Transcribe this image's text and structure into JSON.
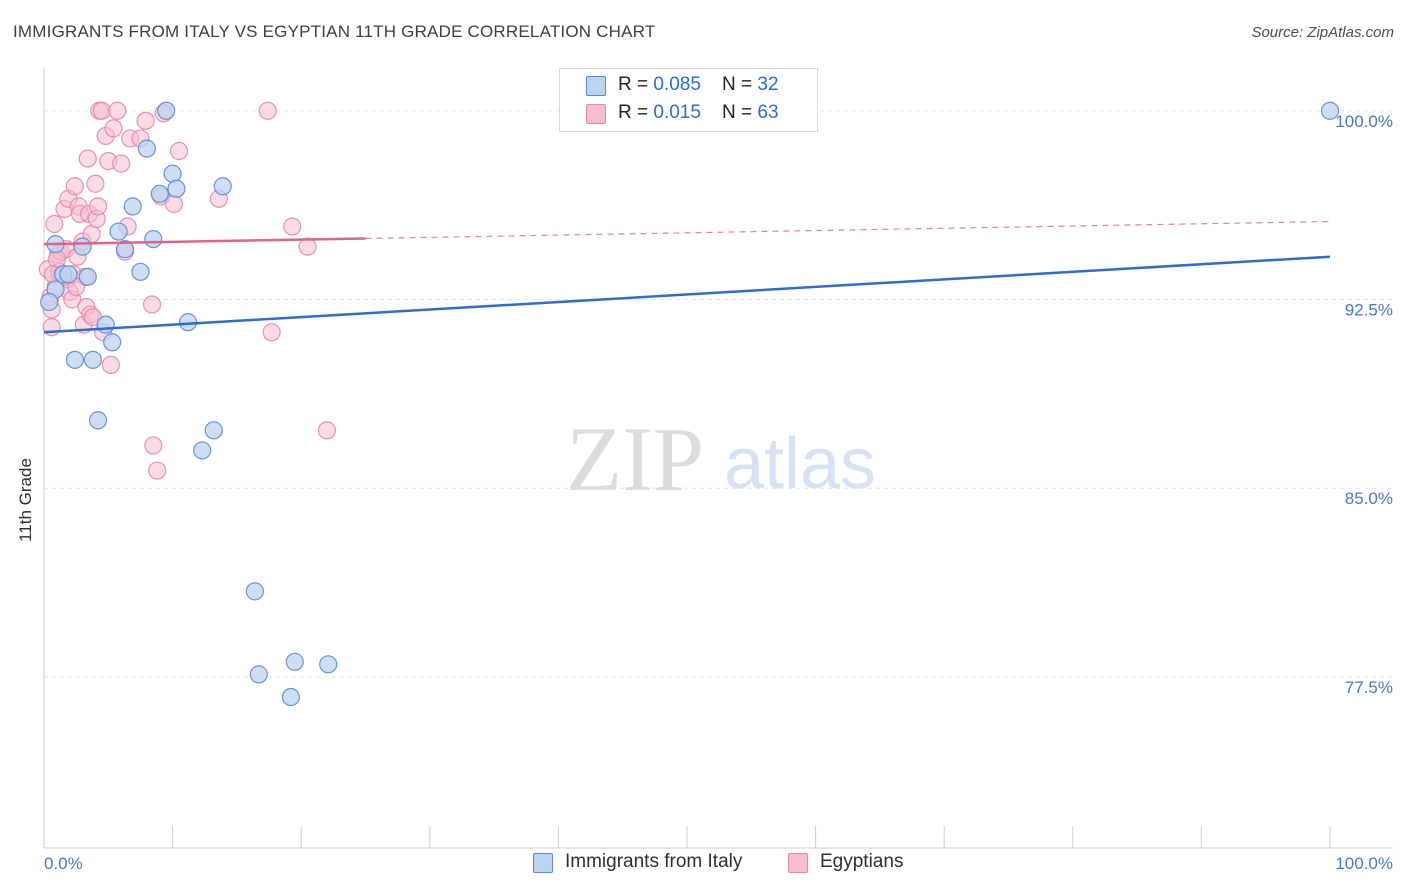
{
  "header": {
    "title": "IMMIGRANTS FROM ITALY VS EGYPTIAN 11TH GRADE CORRELATION CHART",
    "source": "Source: ZipAtlas.com"
  },
  "watermark": {
    "zip": "ZIP",
    "atlas": "atlas"
  },
  "colors": {
    "blue": "#2f6ccf",
    "blue_fill": "#bcd3f2",
    "pink": "#e0628e",
    "pink_fill": "#f7bdd0",
    "grid": "#e3e3e3",
    "tick_label": "#4a78c4"
  },
  "legend": {
    "italy": {
      "r_label": "R = ",
      "r_value": "0.085",
      "n_label": "N = ",
      "n_value": "32"
    },
    "egypt": {
      "r_label": "R = ",
      "r_value": "0.015",
      "n_label": "N = ",
      "n_value": "63"
    }
  },
  "series_labels": {
    "italy": "Immigrants from Italy",
    "egypt": "Egyptians"
  },
  "chart_data": {
    "type": "scatter",
    "title": "IMMIGRANTS FROM ITALY VS EGYPTIAN 11TH GRADE CORRELATION CHART",
    "xlabel": "",
    "ylabel": "11th Grade",
    "xlim": [
      0,
      100
    ],
    "ylim": [
      70.7,
      101.7
    ],
    "x_tick_labels": [
      "0.0%",
      "100.0%"
    ],
    "y_ticks": [
      {
        "value": 100.0,
        "label": "100.0%"
      },
      {
        "value": 92.5,
        "label": "92.5%"
      },
      {
        "value": 85.0,
        "label": "85.0%"
      },
      {
        "value": 77.5,
        "label": "77.5%"
      }
    ],
    "grid": true,
    "legend_position": "top-center",
    "series": [
      {
        "name": "Immigrants from Italy",
        "color": "#2f6ccf",
        "trend": {
          "x0": 0,
          "y0": 91.2,
          "x1": 100,
          "y1": 94.2,
          "dashed_from": null
        },
        "points": [
          [
            0.9,
            94.7
          ],
          [
            0.9,
            92.9
          ],
          [
            1.5,
            93.5
          ],
          [
            1.9,
            93.5
          ],
          [
            2.4,
            90.1
          ],
          [
            3.0,
            94.6
          ],
          [
            3.4,
            93.4
          ],
          [
            3.8,
            90.1
          ],
          [
            4.2,
            87.7
          ],
          [
            4.8,
            91.5
          ],
          [
            5.3,
            90.8
          ],
          [
            5.8,
            95.2
          ],
          [
            6.3,
            94.5
          ],
          [
            6.9,
            96.2
          ],
          [
            7.5,
            93.6
          ],
          [
            8.0,
            98.5
          ],
          [
            8.5,
            94.9
          ],
          [
            9.0,
            96.7
          ],
          [
            9.5,
            100.0
          ],
          [
            10.0,
            97.5
          ],
          [
            10.3,
            96.9
          ],
          [
            11.2,
            91.6
          ],
          [
            12.3,
            86.5
          ],
          [
            13.2,
            87.3
          ],
          [
            13.9,
            97.0
          ],
          [
            16.4,
            80.9
          ],
          [
            16.7,
            77.6
          ],
          [
            19.2,
            76.7
          ],
          [
            19.5,
            78.1
          ],
          [
            22.1,
            78.0
          ],
          [
            0.4,
            92.4
          ],
          [
            100.0,
            100.0
          ]
        ]
      },
      {
        "name": "Egyptians",
        "color": "#e0628e",
        "trend": {
          "x0": 0,
          "y0": 94.7,
          "x1": 100,
          "y1": 95.6,
          "dashed_from": 25
        },
        "points": [
          [
            0.3,
            93.7
          ],
          [
            0.5,
            92.6
          ],
          [
            0.6,
            92.1
          ],
          [
            0.6,
            91.4
          ],
          [
            0.8,
            95.5
          ],
          [
            0.9,
            93.0
          ],
          [
            1.1,
            94.3
          ],
          [
            1.2,
            93.6
          ],
          [
            1.3,
            94.4
          ],
          [
            1.4,
            93.5
          ],
          [
            1.6,
            96.1
          ],
          [
            1.7,
            94.5
          ],
          [
            1.8,
            93.3
          ],
          [
            1.9,
            96.5
          ],
          [
            2.0,
            92.8
          ],
          [
            2.2,
            92.5
          ],
          [
            2.3,
            93.5
          ],
          [
            2.4,
            97.0
          ],
          [
            2.6,
            94.2
          ],
          [
            2.7,
            96.2
          ],
          [
            2.8,
            95.9
          ],
          [
            3.0,
            94.8
          ],
          [
            3.1,
            91.5
          ],
          [
            3.2,
            93.4
          ],
          [
            3.3,
            92.2
          ],
          [
            3.4,
            98.1
          ],
          [
            3.5,
            95.9
          ],
          [
            3.6,
            91.9
          ],
          [
            3.7,
            95.1
          ],
          [
            3.8,
            91.8
          ],
          [
            4.0,
            97.1
          ],
          [
            4.1,
            95.7
          ],
          [
            4.2,
            96.2
          ],
          [
            4.3,
            100.0
          ],
          [
            4.5,
            100.0
          ],
          [
            4.6,
            91.2
          ],
          [
            4.8,
            99.0
          ],
          [
            5.0,
            98.0
          ],
          [
            5.2,
            89.9
          ],
          [
            5.4,
            99.3
          ],
          [
            5.7,
            100.0
          ],
          [
            6.0,
            97.9
          ],
          [
            6.3,
            94.4
          ],
          [
            6.5,
            95.4
          ],
          [
            6.7,
            98.9
          ],
          [
            7.5,
            98.9
          ],
          [
            7.9,
            99.6
          ],
          [
            8.4,
            92.3
          ],
          [
            8.5,
            86.7
          ],
          [
            8.8,
            85.7
          ],
          [
            9.1,
            96.6
          ],
          [
            9.3,
            99.9
          ],
          [
            10.1,
            96.3
          ],
          [
            10.5,
            98.4
          ],
          [
            13.6,
            96.5
          ],
          [
            17.4,
            100.0
          ],
          [
            17.7,
            91.2
          ],
          [
            19.3,
            95.4
          ],
          [
            20.5,
            94.6
          ],
          [
            22.0,
            87.3
          ],
          [
            1.0,
            94.1
          ],
          [
            2.5,
            93.0
          ],
          [
            0.7,
            93.5
          ]
        ]
      }
    ]
  }
}
